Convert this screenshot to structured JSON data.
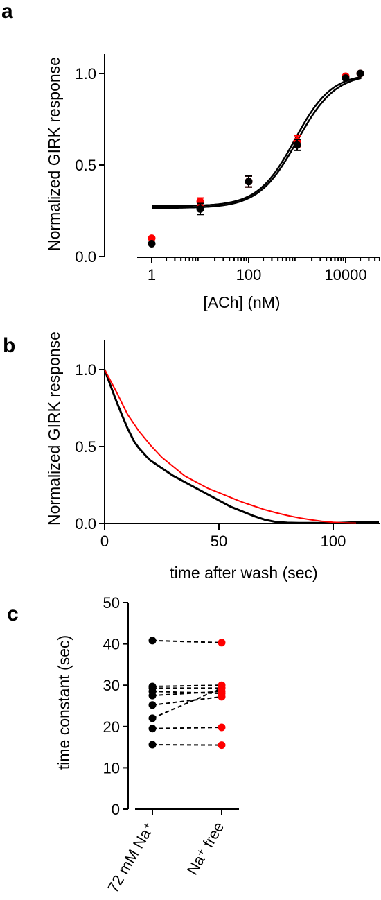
{
  "chart_data": [
    {
      "panel_label": "a",
      "type": "scatter",
      "xlabel": "[ACh] (nM)",
      "ylabel": "Normalized GIRK response",
      "x_scale": "log",
      "xlim": [
        1,
        100000
      ],
      "ylim": [
        0,
        1.0
      ],
      "xticks": [
        1,
        100,
        10000
      ],
      "xtick_labels": [
        "1",
        "100",
        "10000"
      ],
      "yticks": [
        0,
        0.5,
        1.0
      ],
      "ytick_labels": [
        "0.0",
        "0.5",
        "1.0"
      ],
      "series": [
        {
          "color": "#ff0000",
          "points": [
            {
              "x": 1,
              "y": 0.1,
              "err": 0
            },
            {
              "x": 10,
              "y": 0.3,
              "err": 0.02
            },
            {
              "x": 100,
              "y": 0.41,
              "err": 0.03
            },
            {
              "x": 1000,
              "y": 0.63,
              "err": 0.03
            },
            {
              "x": 10000,
              "y": 0.985,
              "err": 0.005
            },
            {
              "x": 20000,
              "y": 1.0,
              "err": 0
            }
          ],
          "fit": {
            "bottom": 0.265,
            "top": 1.0,
            "logEC50": 3.0,
            "hill": 1.1
          }
        },
        {
          "color": "#000000",
          "points": [
            {
              "x": 1,
              "y": 0.07,
              "err": 0
            },
            {
              "x": 10,
              "y": 0.26,
              "err": 0.03
            },
            {
              "x": 100,
              "y": 0.41,
              "err": 0.03
            },
            {
              "x": 1000,
              "y": 0.61,
              "err": 0.03
            },
            {
              "x": 10000,
              "y": 0.975,
              "err": 0.005
            },
            {
              "x": 20000,
              "y": 1.0,
              "err": 0
            }
          ],
          "fit": {
            "bottom": 0.275,
            "top": 1.0,
            "logEC50": 2.95,
            "hill": 1.15
          }
        }
      ]
    },
    {
      "panel_label": "b",
      "type": "line",
      "xlabel": "time after wash (sec)",
      "ylabel": "Normalized GIRK response",
      "xlim": [
        0,
        120
      ],
      "ylim": [
        0,
        1.2
      ],
      "xticks": [
        0,
        50,
        100
      ],
      "xtick_labels": [
        "0",
        "50",
        "100"
      ],
      "yticks": [
        0,
        0.5,
        1.0
      ],
      "ytick_labels": [
        "0.0",
        "0.5",
        "1.0"
      ],
      "series": [
        {
          "color": "#000000",
          "x": [
            0,
            2,
            5,
            8,
            10,
            13,
            15,
            18,
            20,
            25,
            30,
            35,
            40,
            45,
            50,
            55,
            60,
            65,
            70,
            75,
            80,
            85,
            90,
            95,
            100,
            105,
            110,
            115,
            120
          ],
          "y": [
            1.0,
            0.92,
            0.8,
            0.69,
            0.62,
            0.53,
            0.49,
            0.44,
            0.41,
            0.36,
            0.31,
            0.27,
            0.23,
            0.19,
            0.15,
            0.11,
            0.08,
            0.05,
            0.025,
            0.01,
            0.005,
            0.003,
            0.003,
            0.003,
            0.003,
            0.005,
            0.008,
            0.01,
            0.01
          ]
        },
        {
          "color": "#ff0000",
          "x": [
            0,
            5,
            10,
            15,
            20,
            25,
            30,
            35,
            40,
            45,
            50,
            55,
            60,
            65,
            70,
            75,
            80,
            85,
            90,
            95,
            100,
            105,
            110
          ],
          "y": [
            1.0,
            0.86,
            0.71,
            0.6,
            0.51,
            0.43,
            0.37,
            0.31,
            0.27,
            0.23,
            0.2,
            0.17,
            0.14,
            0.115,
            0.09,
            0.07,
            0.052,
            0.037,
            0.025,
            0.015,
            0.008,
            0.004,
            0.002
          ]
        }
      ]
    },
    {
      "panel_label": "c",
      "type": "scatter",
      "ylabel": "time constant  (sec)",
      "ylim": [
        0,
        50
      ],
      "yticks": [
        0,
        10,
        20,
        30,
        40,
        50
      ],
      "categories": [
        "72 mM Na⁺",
        "Na⁺ free"
      ],
      "category_colors": [
        "#000000",
        "#ff0000"
      ],
      "pairs": [
        [
          40.8,
          40.3
        ],
        [
          29.7,
          30.0
        ],
        [
          29.3,
          29.3
        ],
        [
          28.5,
          28.0
        ],
        [
          27.5,
          28.5
        ],
        [
          25.2,
          27.2
        ],
        [
          22.0,
          29.3
        ],
        [
          19.5,
          19.8
        ],
        [
          15.6,
          15.5
        ]
      ]
    }
  ]
}
